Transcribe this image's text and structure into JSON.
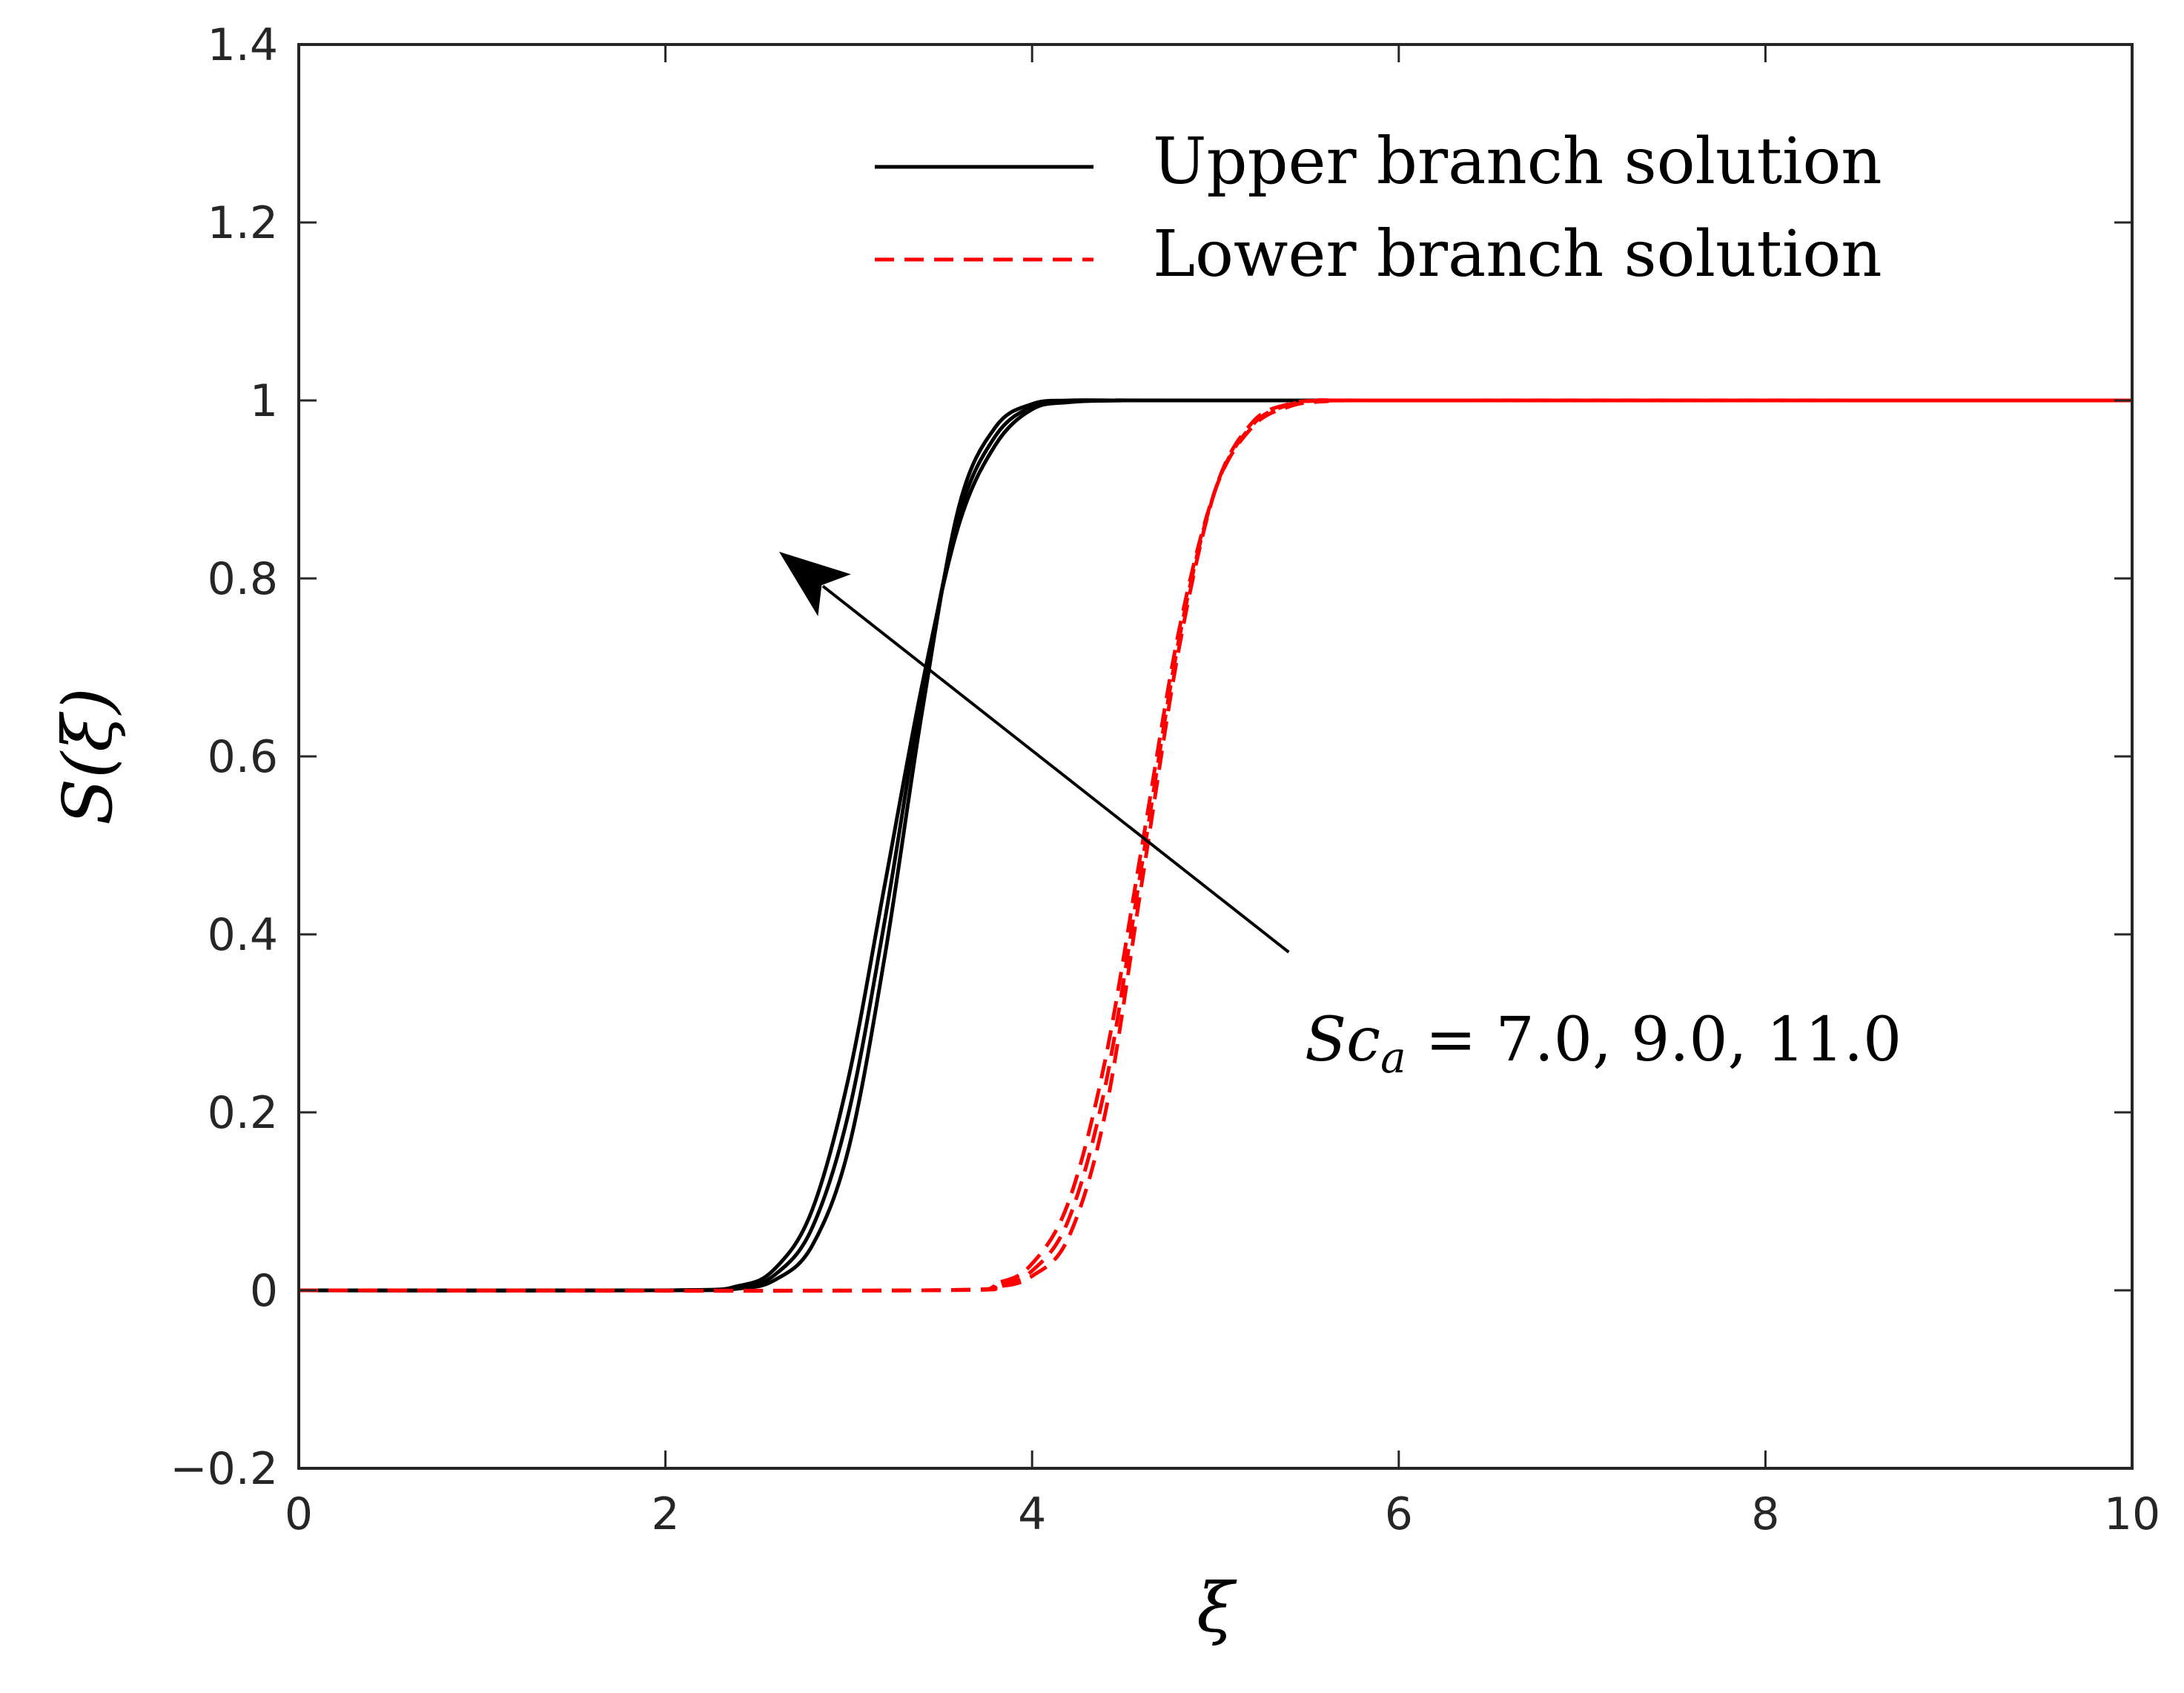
{
  "chart_data": {
    "type": "line",
    "xlabel": "ξ",
    "ylabel": "S(ξ)",
    "xlim": [
      0,
      10
    ],
    "ylim": [
      -0.2,
      1.4
    ],
    "x_ticks": [
      0,
      2,
      4,
      6,
      8,
      10
    ],
    "y_ticks": [
      -0.2,
      0,
      0.2,
      0.4,
      0.6,
      0.8,
      1,
      1.2,
      1.4
    ],
    "x_tick_labels": [
      "0",
      "2",
      "4",
      "6",
      "8",
      "10"
    ],
    "y_tick_labels": [
      "−0.2",
      "0",
      "0.2",
      "0.4",
      "0.6",
      "0.8",
      "1",
      "1.2",
      "1.4"
    ],
    "grid": false,
    "legend_position": "top-right",
    "legend": [
      {
        "label": "Upper branch solution",
        "color": "#000000",
        "style": "solid"
      },
      {
        "label": "Lower branch solution",
        "color": "#ff0000",
        "style": "dashed"
      }
    ],
    "annotation": {
      "text": "Sc",
      "subscript": "a",
      "suffix": " = 7.0, 9.0, 11.0",
      "arrow_from": [
        5.4,
        0.38
      ],
      "arrow_to": [
        2.62,
        0.83
      ]
    },
    "series": [
      {
        "branch": "upper",
        "color": "#000000",
        "style": "solid",
        "x": [
          0,
          2.0,
          2.4,
          2.6,
          2.8,
          3.0,
          3.2,
          3.4,
          3.6,
          3.8,
          4.0,
          4.2,
          4.5,
          5.0,
          10
        ],
        "y": [
          0,
          0,
          0.005,
          0.025,
          0.09,
          0.24,
          0.46,
          0.68,
          0.86,
          0.95,
          0.99,
          0.998,
          1,
          1,
          1
        ]
      },
      {
        "branch": "upper",
        "color": "#000000",
        "style": "solid",
        "x": [
          0,
          2.0,
          2.4,
          2.6,
          2.8,
          3.0,
          3.2,
          3.4,
          3.6,
          3.8,
          4.0,
          4.2,
          4.5,
          5.0,
          10
        ],
        "y": [
          0,
          0,
          0.003,
          0.018,
          0.07,
          0.2,
          0.42,
          0.67,
          0.87,
          0.96,
          0.993,
          0.999,
          1,
          1,
          1
        ]
      },
      {
        "branch": "upper",
        "color": "#000000",
        "style": "solid",
        "x": [
          0,
          2.0,
          2.4,
          2.6,
          2.8,
          3.0,
          3.2,
          3.4,
          3.6,
          3.8,
          4.0,
          4.2,
          4.5,
          5.0,
          10
        ],
        "y": [
          0,
          0,
          0.002,
          0.012,
          0.05,
          0.16,
          0.38,
          0.65,
          0.88,
          0.97,
          0.996,
          1,
          1,
          1,
          1
        ]
      },
      {
        "branch": "lower",
        "color": "#ff0000",
        "style": "dashed",
        "x": [
          0,
          3.4,
          3.8,
          4.0,
          4.2,
          4.4,
          4.6,
          4.8,
          5.0,
          5.2,
          5.4,
          5.6,
          6.0,
          10
        ],
        "y": [
          0,
          0,
          0.008,
          0.03,
          0.1,
          0.26,
          0.5,
          0.74,
          0.9,
          0.97,
          0.993,
          0.999,
          1,
          1
        ]
      },
      {
        "branch": "lower",
        "color": "#ff0000",
        "style": "dashed",
        "x": [
          0,
          3.4,
          3.8,
          4.0,
          4.2,
          4.4,
          4.6,
          4.8,
          5.0,
          5.2,
          5.4,
          5.6,
          6.0,
          10
        ],
        "y": [
          0,
          0,
          0.006,
          0.022,
          0.08,
          0.23,
          0.48,
          0.73,
          0.9,
          0.972,
          0.995,
          1,
          1,
          1
        ]
      },
      {
        "branch": "lower",
        "color": "#ff0000",
        "style": "dashed",
        "x": [
          0,
          3.4,
          3.8,
          4.0,
          4.2,
          4.4,
          4.6,
          4.8,
          5.0,
          5.2,
          5.4,
          5.6,
          6.0,
          10
        ],
        "y": [
          0,
          0,
          0.004,
          0.016,
          0.06,
          0.2,
          0.46,
          0.72,
          0.9,
          0.975,
          0.996,
          1,
          1,
          1
        ]
      }
    ]
  }
}
